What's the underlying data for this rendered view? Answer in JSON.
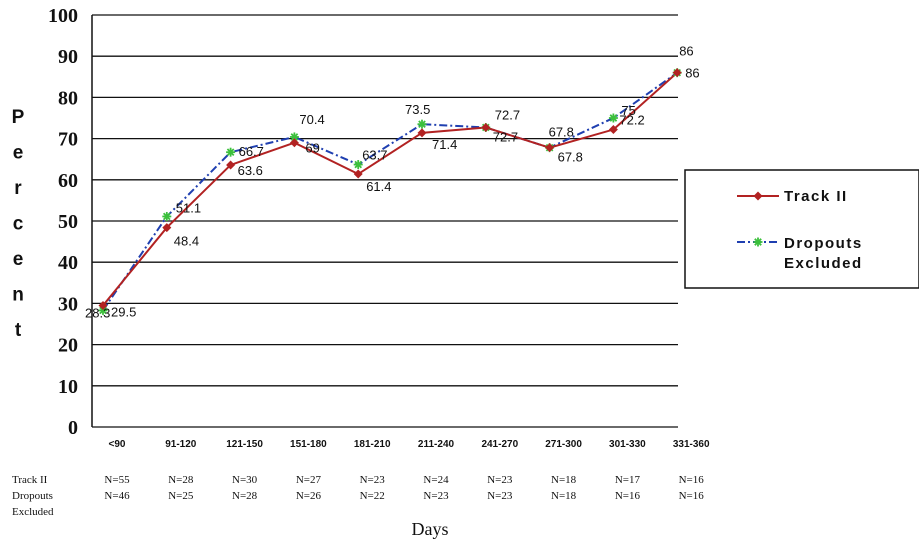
{
  "chart_data": {
    "type": "line",
    "xlabel": "Days",
    "ylabel": "Percent",
    "ylim": [
      0,
      100
    ],
    "yticks": [
      "0",
      "10",
      "20",
      "30",
      "40",
      "50",
      "60",
      "70",
      "80",
      "90",
      "100"
    ],
    "grid": true,
    "legend_position": "right",
    "categories": [
      "<90",
      "91-120",
      "121-150",
      "151-180",
      "181-210",
      "211-240",
      "241-270",
      "271-300",
      "301-330",
      "331-360"
    ],
    "series": [
      {
        "name": "Track II",
        "color": "#b22222",
        "marker": "diamond",
        "line_style": "solid",
        "values": [
          29.5,
          48.4,
          63.6,
          69,
          61.4,
          71.4,
          72.7,
          67.8,
          72.2,
          86
        ],
        "labels": [
          "29.5",
          "48.4",
          "63.6",
          "69",
          "61.4",
          "71.4",
          "72.7",
          "67.8",
          "72.2",
          "86"
        ]
      },
      {
        "name_lines": [
          "Dropouts",
          "Excluded"
        ],
        "color": "#1f3fb0",
        "marker_color": "#3cc03c",
        "marker": "asterisk",
        "line_style": "dash-dot",
        "values": [
          28.3,
          51.1,
          66.7,
          70.4,
          63.7,
          73.5,
          72.7,
          67.8,
          75,
          86
        ],
        "labels": [
          "28.3",
          "51.1",
          "66.7",
          "70.4",
          "63.7",
          "73.5",
          "72.7",
          "67.8",
          "75",
          "86"
        ]
      }
    ],
    "n_table": {
      "rows": [
        {
          "label_lines": [
            "Track II"
          ],
          "values": [
            "N=55",
            "N=28",
            "N=30",
            "N=27",
            "N=23",
            "N=24",
            "N=23",
            "N=18",
            "N=17",
            "N=16"
          ]
        },
        {
          "label_lines": [
            "Dropouts",
            "Excluded"
          ],
          "values": [
            "N=46",
            "N=25",
            "N=28",
            "N=26",
            "N=22",
            "N=23",
            "N=23",
            "N=18",
            "N=16",
            "N=16"
          ]
        }
      ]
    }
  }
}
